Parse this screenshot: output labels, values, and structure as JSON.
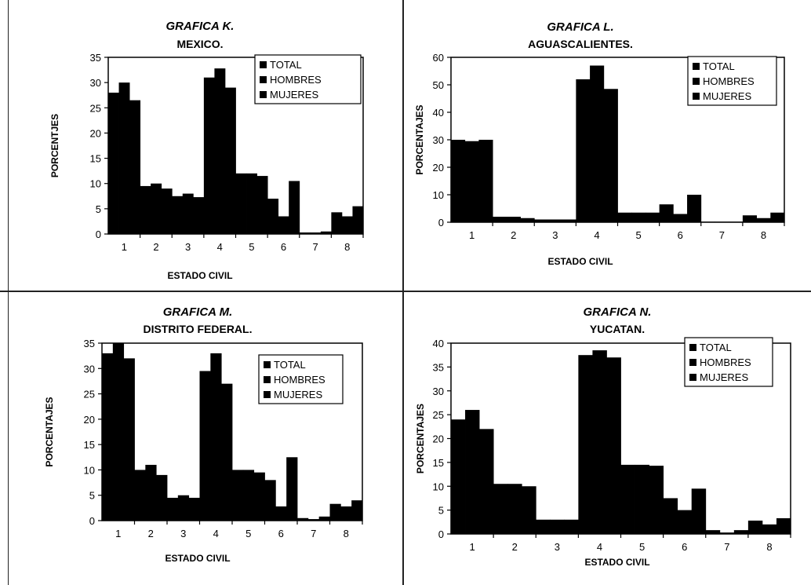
{
  "colors": {
    "bars": "#000000",
    "text": "#000000",
    "background": "#ffffff"
  },
  "chart_data": [
    {
      "type": "bar",
      "title": "GRAFICA K.",
      "subtitle": "MEXICO.",
      "xlabel": "ESTADO CIVIL",
      "ylabel": "PORCENTJES",
      "ylim": [
        0,
        35
      ],
      "yticks": [
        "0",
        "5",
        "10",
        "15",
        "20",
        "25",
        "30",
        "35"
      ],
      "categories": [
        "1",
        "2",
        "3",
        "4",
        "5",
        "6",
        "7",
        "8"
      ],
      "legend_position": "top-right",
      "series": [
        {
          "name": "TOTAL",
          "values": [
            28,
            9.5,
            7.5,
            31,
            12,
            7,
            0.3,
            4.3
          ]
        },
        {
          "name": "HOMBRES",
          "values": [
            30,
            10,
            8,
            32.8,
            12,
            3.5,
            0.3,
            3.5
          ]
        },
        {
          "name": "MUJERES",
          "values": [
            26.5,
            9,
            7.3,
            29,
            11.5,
            10.5,
            0.5,
            5.5
          ]
        }
      ]
    },
    {
      "type": "bar",
      "title": "GRAFICA L.",
      "subtitle": "AGUASCALIENTES.",
      "xlabel": "ESTADO CIVIL",
      "ylabel": "PORCENTAJES",
      "ylim": [
        0,
        60
      ],
      "yticks": [
        "0",
        "10",
        "20",
        "30",
        "40",
        "50",
        "60"
      ],
      "categories": [
        "1",
        "2",
        "3",
        "4",
        "5",
        "6",
        "7",
        "8"
      ],
      "legend_position": "top-right",
      "series": [
        {
          "name": "TOTAL",
          "values": [
            30,
            2,
            1,
            52,
            3.5,
            6.5,
            0.2,
            2.5
          ]
        },
        {
          "name": "HOMBRES",
          "values": [
            29.5,
            2,
            1,
            57,
            3.5,
            3,
            0.2,
            1.5
          ]
        },
        {
          "name": "MUJERES",
          "values": [
            30,
            1.5,
            1,
            48.5,
            3.5,
            10,
            0.2,
            3.5
          ]
        }
      ]
    },
    {
      "type": "bar",
      "title": "GRAFICA M.",
      "subtitle": "DISTRITO FEDERAL.",
      "xlabel": "ESTADO CIVIL",
      "ylabel": "PORCENTAJES",
      "ylim": [
        0,
        35
      ],
      "yticks": [
        "0",
        "5",
        "10",
        "15",
        "20",
        "25",
        "30",
        "35"
      ],
      "categories": [
        "1",
        "2",
        "3",
        "4",
        "5",
        "6",
        "7",
        "8"
      ],
      "legend_position": "top-right",
      "series": [
        {
          "name": "TOTAL",
          "values": [
            33,
            10,
            4.5,
            29.5,
            10,
            8,
            0.5,
            3.3
          ]
        },
        {
          "name": "HOMBRES",
          "values": [
            35,
            11,
            5,
            33,
            10,
            2.8,
            0.3,
            2.8
          ]
        },
        {
          "name": "MUJERES",
          "values": [
            32,
            9,
            4.5,
            27,
            9.5,
            12.5,
            0.8,
            4
          ]
        }
      ]
    },
    {
      "type": "bar",
      "title": "GRAFICA N.",
      "subtitle": "YUCATAN.",
      "xlabel": "ESTADO CIVIL",
      "ylabel": "PORCENTAJES",
      "ylim": [
        0,
        40
      ],
      "yticks": [
        "0",
        "5",
        "10",
        "15",
        "20",
        "25",
        "30",
        "35",
        "40"
      ],
      "categories": [
        "1",
        "2",
        "3",
        "4",
        "5",
        "6",
        "7",
        "8"
      ],
      "legend_position": "top-right",
      "series": [
        {
          "name": "TOTAL",
          "values": [
            24,
            10.5,
            3,
            37.5,
            14.5,
            7.5,
            0.8,
            2.8
          ]
        },
        {
          "name": "HOMBRES",
          "values": [
            26,
            10.5,
            3,
            38.5,
            14.5,
            5,
            0.3,
            2
          ]
        },
        {
          "name": "MUJERES",
          "values": [
            22,
            10,
            3,
            37,
            14.3,
            9.5,
            0.8,
            3.3
          ]
        }
      ]
    }
  ]
}
